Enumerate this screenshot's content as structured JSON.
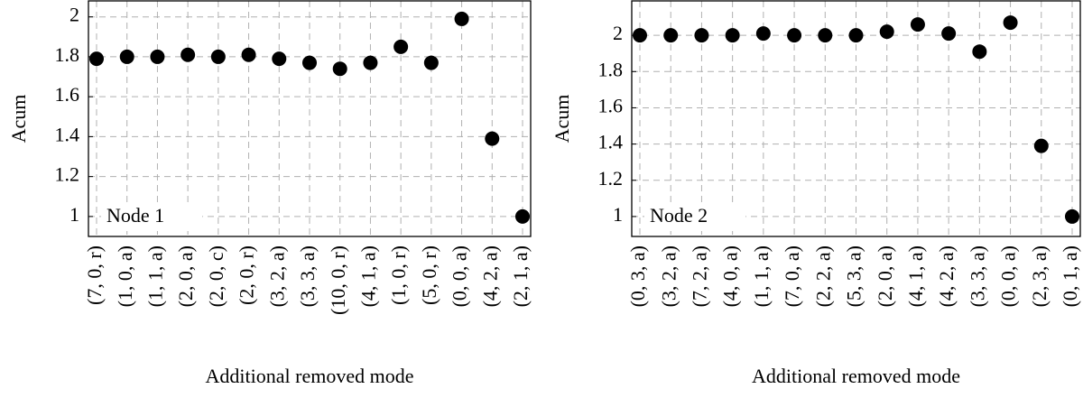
{
  "chart_data": [
    {
      "type": "scatter",
      "annotation": "Node 1",
      "xlabel": "Additional removed mode",
      "ylabel": "Acum",
      "categories": [
        "(7, 0, r)",
        "(1, 0, a)",
        "(1, 1, a)",
        "(2, 0, a)",
        "(2, 0, c)",
        "(2, 0, r)",
        "(3, 2, a)",
        "(3, 3, a)",
        "(10, 0, r)",
        "(4, 1, a)",
        "(1, 0, r)",
        "(5, 0, r)",
        "(0, 0, a)",
        "(4, 2, a)",
        "(2, 1, a)"
      ],
      "values": [
        1.79,
        1.8,
        1.8,
        1.81,
        1.8,
        1.81,
        1.79,
        1.77,
        1.74,
        1.77,
        1.85,
        1.77,
        1.99,
        1.39,
        1.0
      ],
      "color": "#000000",
      "ylim": [
        0.9,
        2.08
      ],
      "yticks": [
        1,
        1.2,
        1.4,
        1.6,
        1.8,
        2
      ],
      "grid": true
    },
    {
      "type": "scatter",
      "annotation": "Node 2",
      "xlabel": "Additional removed mode",
      "ylabel": "Acum",
      "categories": [
        "(0, 3, a)",
        "(3, 2, a)",
        "(7, 2, a)",
        "(4, 0, a)",
        "(1, 1, a)",
        "(7, 0, a)",
        "(2, 2, a)",
        "(5, 3, a)",
        "(2, 0, a)",
        "(4, 1, a)",
        "(4, 2, a)",
        "(3, 3, a)",
        "(0, 0, a)",
        "(2, 3, a)",
        "(0, 1, a)"
      ],
      "values": [
        2.0,
        2.0,
        2.0,
        2.0,
        2.01,
        2.0,
        2.0,
        2.0,
        2.02,
        2.06,
        2.01,
        1.91,
        2.07,
        1.39,
        1.0
      ],
      "color": "#000000",
      "ylim": [
        0.89,
        2.19
      ],
      "yticks": [
        1,
        1.2,
        1.4,
        1.6,
        1.8,
        2
      ],
      "grid": true
    }
  ]
}
